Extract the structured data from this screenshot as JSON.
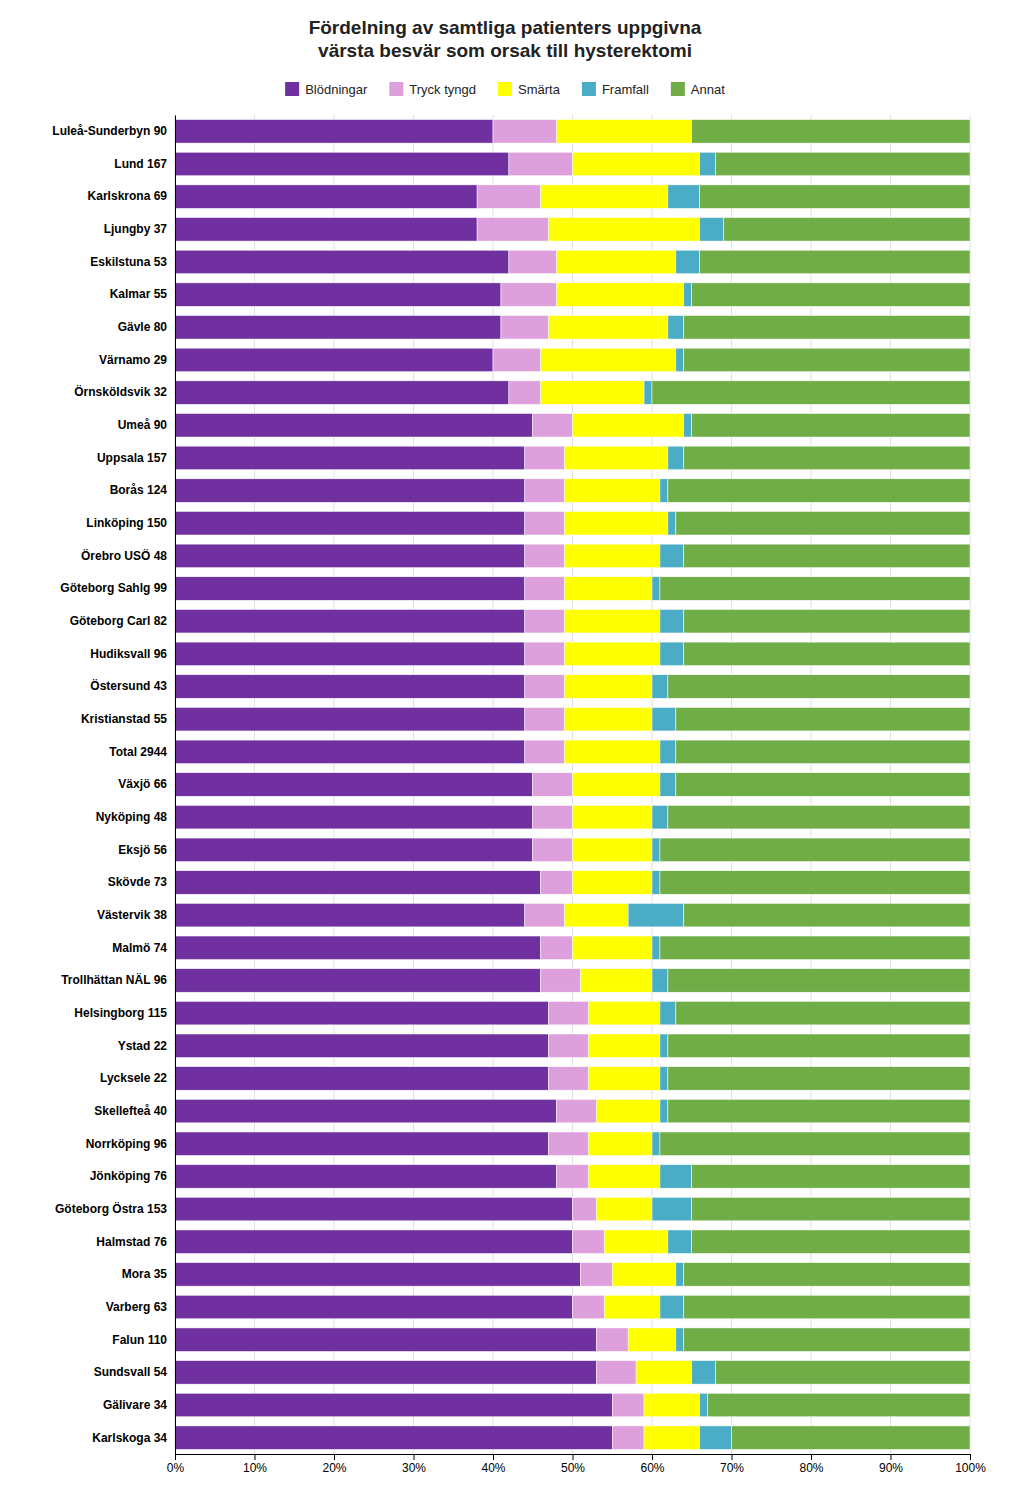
{
  "chart_data": {
    "type": "bar",
    "orientation": "horizontal",
    "stacked": true,
    "title": "Fördelning av samtliga patienters uppgivna\nvärsta besvär som orsak till hysterektomi",
    "categories": [
      "Luleå-Sunderbyn 90",
      "Lund 167",
      "Karlskrona 69",
      "Ljungby 37",
      "Eskilstuna 53",
      "Kalmar 55",
      "Gävle 80",
      "Värnamo 29",
      "Örnsköldsvik 32",
      "Umeå 90",
      "Uppsala 157",
      "Borås 124",
      "Linköping 150",
      "Örebro USÖ 48",
      "Göteborg Sahlg 99",
      "Göteborg Carl 82",
      "Hudiksvall 96",
      "Östersund 43",
      "Kristianstad 55",
      "Total 2944",
      "Växjö 66",
      "Nyköping 48",
      "Eksjö 56",
      "Skövde 73",
      "Västervik 38",
      "Malmö 74",
      "Trollhättan NÄL 96",
      "Helsingborg 115",
      "Ystad 22",
      "Lycksele 22",
      "Skellefteå 40",
      "Norrköping 96",
      "Jönköping 76",
      "Göteborg Östra 153",
      "Halmstad 76",
      "Mora 35",
      "Varberg 63",
      "Falun 110",
      "Sundsvall 54",
      "Gälivare 34",
      "Karlskoga 34"
    ],
    "series": [
      {
        "name": "Blödningar",
        "color": "#7030A0",
        "values": [
          40,
          42,
          38,
          38,
          42,
          41,
          41,
          40,
          42,
          45,
          44,
          44,
          44,
          44,
          44,
          44,
          44,
          44,
          44,
          44,
          45,
          45,
          45,
          46,
          44,
          46,
          46,
          47,
          47,
          47,
          48,
          47,
          48,
          50,
          50,
          51,
          50,
          53,
          53,
          55,
          55
        ]
      },
      {
        "name": "Tryck tyngd",
        "color": "#DDA0DD",
        "values": [
          8,
          8,
          8,
          9,
          6,
          7,
          6,
          6,
          4,
          5,
          5,
          5,
          5,
          5,
          5,
          5,
          5,
          5,
          5,
          5,
          5,
          5,
          5,
          4,
          5,
          4,
          5,
          5,
          5,
          5,
          5,
          5,
          4,
          3,
          4,
          4,
          4,
          4,
          5,
          4,
          4
        ]
      },
      {
        "name": "Smärta",
        "color": "#FFFF00",
        "values": [
          17,
          16,
          16,
          19,
          15,
          16,
          15,
          17,
          13,
          14,
          13,
          12,
          13,
          12,
          11,
          12,
          12,
          11,
          11,
          12,
          11,
          10,
          10,
          10,
          8,
          10,
          9,
          9,
          9,
          9,
          8,
          8,
          9,
          7,
          8,
          8,
          7,
          6,
          7,
          7,
          7
        ]
      },
      {
        "name": "Framfall",
        "color": "#4BACC6",
        "values": [
          0,
          2,
          4,
          3,
          3,
          1,
          2,
          1,
          1,
          1,
          2,
          1,
          1,
          3,
          1,
          3,
          3,
          2,
          3,
          2,
          2,
          2,
          1,
          1,
          7,
          1,
          2,
          2,
          1,
          1,
          1,
          1,
          4,
          5,
          3,
          1,
          3,
          1,
          3,
          1,
          4
        ]
      },
      {
        "name": "Annat",
        "color": "#70AD47",
        "values": [
          35,
          32,
          34,
          31,
          34,
          35,
          36,
          36,
          40,
          35,
          36,
          38,
          37,
          36,
          39,
          36,
          36,
          38,
          37,
          37,
          37,
          38,
          39,
          39,
          36,
          39,
          38,
          37,
          38,
          38,
          38,
          39,
          35,
          35,
          35,
          36,
          36,
          36,
          32,
          33,
          30
        ]
      }
    ],
    "xlim": [
      0,
      100
    ],
    "xticks": [
      {
        "value": 0,
        "label": "0%"
      },
      {
        "value": 10,
        "label": "10%"
      },
      {
        "value": 20,
        "label": "20%"
      },
      {
        "value": 30,
        "label": "30%"
      },
      {
        "value": 40,
        "label": "40%"
      },
      {
        "value": 50,
        "label": "50%"
      },
      {
        "value": 60,
        "label": "60%"
      },
      {
        "value": 70,
        "label": "70%"
      },
      {
        "value": 80,
        "label": "80%"
      },
      {
        "value": 90,
        "label": "90%"
      },
      {
        "value": 100,
        "label": "100%"
      }
    ],
    "grid": true,
    "legend": "top"
  }
}
